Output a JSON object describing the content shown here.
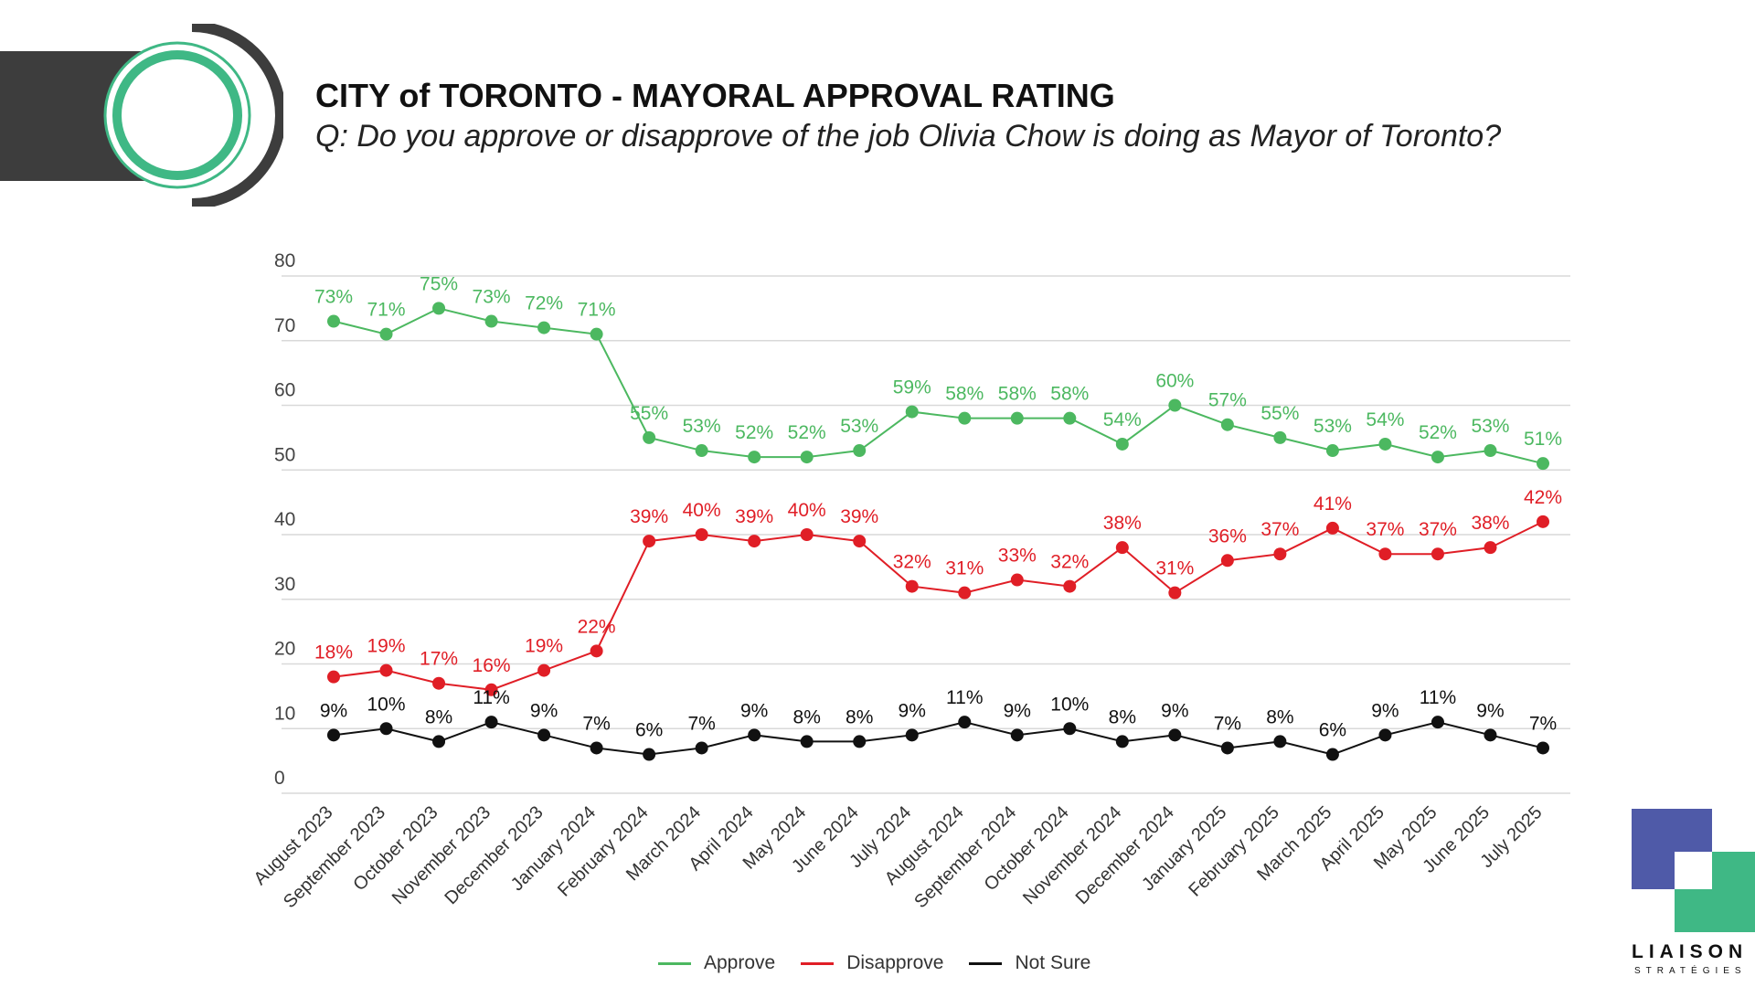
{
  "header": {
    "title": "CITY of TORONTO - MAYORAL APPROVAL RATING",
    "subtitle": "Q: Do you approve or disapprove of the job Olivia Chow is doing as Mayor of Toronto?"
  },
  "logo": {
    "name": "LIAISON",
    "tagline": "STRATÉGIES"
  },
  "colors": {
    "approve": "#4cb860",
    "disapprove": "#e01e26",
    "not_sure": "#111111",
    "accent_green": "#3fb885",
    "accent_purple": "#4f5aa8"
  },
  "chart_data": {
    "type": "line",
    "title": "",
    "xlabel": "",
    "ylabel": "",
    "ylim": [
      0,
      80
    ],
    "yticks": [
      0,
      10,
      20,
      30,
      40,
      50,
      60,
      70,
      80
    ],
    "grid": true,
    "legend_position": "bottom",
    "categories": [
      "August 2023",
      "September 2023",
      "October 2023",
      "November 2023",
      "December 2023",
      "January 2024",
      "February 2024",
      "March 2024",
      "April 2024",
      "May 2024",
      "June 2024",
      "July 2024",
      "August 2024",
      "September 2024",
      "October 2024",
      "November 2024",
      "December 2024",
      "January 2025",
      "February 2025",
      "March 2025",
      "April 2025",
      "May 2025",
      "June 2025",
      "July 2025"
    ],
    "series": [
      {
        "name": "Approve",
        "color": "#4cb860",
        "values": [
          73,
          71,
          75,
          73,
          72,
          71,
          55,
          53,
          52,
          52,
          53,
          59,
          58,
          58,
          58,
          54,
          60,
          57,
          55,
          53,
          54,
          52,
          53,
          51
        ]
      },
      {
        "name": "Disapprove",
        "color": "#e01e26",
        "values": [
          18,
          19,
          17,
          16,
          19,
          22,
          39,
          40,
          39,
          40,
          39,
          32,
          31,
          33,
          32,
          38,
          31,
          36,
          37,
          41,
          37,
          37,
          38,
          42
        ]
      },
      {
        "name": "Not Sure",
        "color": "#111111",
        "values": [
          9,
          10,
          8,
          11,
          9,
          7,
          6,
          7,
          9,
          8,
          8,
          9,
          11,
          9,
          10,
          8,
          9,
          7,
          8,
          6,
          9,
          11,
          9,
          7
        ]
      }
    ],
    "value_suffix": "%"
  }
}
